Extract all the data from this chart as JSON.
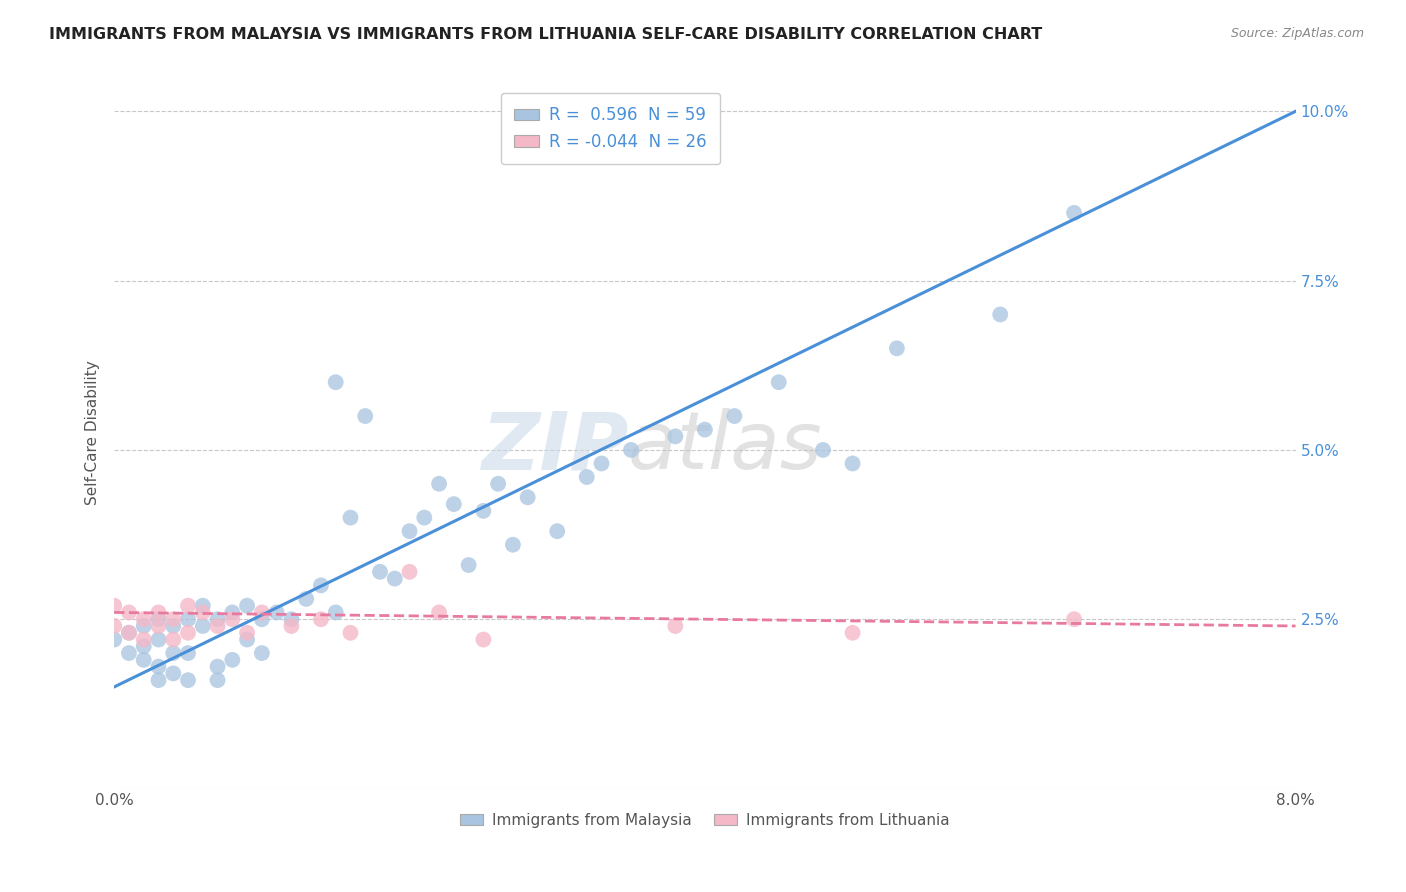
{
  "title": "IMMIGRANTS FROM MALAYSIA VS IMMIGRANTS FROM LITHUANIA SELF-CARE DISABILITY CORRELATION CHART",
  "source": "Source: ZipAtlas.com",
  "ylabel": "Self-Care Disability",
  "xlim": [
    0.0,
    0.08
  ],
  "ylim": [
    0.0,
    0.105
  ],
  "yticks": [
    0.0,
    0.025,
    0.05,
    0.075,
    0.1
  ],
  "yticklabels": [
    "",
    "2.5%",
    "5.0%",
    "7.5%",
    "10.0%"
  ],
  "malaysia_R": 0.596,
  "malaysia_N": 59,
  "lithuania_R": -0.044,
  "lithuania_N": 26,
  "malaysia_color": "#a8c4e0",
  "lithuania_color": "#f4b8c8",
  "malaysia_line_color": "#4a90d9",
  "lithuania_line_color": "#e87a9f",
  "background_color": "#ffffff",
  "grid_color": "#c8c8c8",
  "watermark_zip": "ZIP",
  "watermark_atlas": "atlas",
  "malaysia_x": [
    0.0,
    0.001,
    0.001,
    0.002,
    0.002,
    0.002,
    0.003,
    0.003,
    0.003,
    0.003,
    0.004,
    0.004,
    0.004,
    0.005,
    0.005,
    0.005,
    0.006,
    0.006,
    0.007,
    0.007,
    0.007,
    0.008,
    0.008,
    0.009,
    0.009,
    0.01,
    0.01,
    0.011,
    0.012,
    0.013,
    0.014,
    0.015,
    0.015,
    0.016,
    0.017,
    0.018,
    0.019,
    0.02,
    0.021,
    0.022,
    0.023,
    0.024,
    0.025,
    0.026,
    0.027,
    0.028,
    0.03,
    0.032,
    0.033,
    0.035,
    0.038,
    0.04,
    0.042,
    0.045,
    0.048,
    0.05,
    0.053,
    0.06,
    0.065
  ],
  "malaysia_y": [
    0.022,
    0.02,
    0.023,
    0.019,
    0.021,
    0.024,
    0.016,
    0.018,
    0.022,
    0.025,
    0.017,
    0.02,
    0.024,
    0.016,
    0.02,
    0.025,
    0.024,
    0.027,
    0.016,
    0.018,
    0.025,
    0.019,
    0.026,
    0.022,
    0.027,
    0.02,
    0.025,
    0.026,
    0.025,
    0.028,
    0.03,
    0.026,
    0.06,
    0.04,
    0.055,
    0.032,
    0.031,
    0.038,
    0.04,
    0.045,
    0.042,
    0.033,
    0.041,
    0.045,
    0.036,
    0.043,
    0.038,
    0.046,
    0.048,
    0.05,
    0.052,
    0.053,
    0.055,
    0.06,
    0.05,
    0.048,
    0.065,
    0.07,
    0.085
  ],
  "lithuania_x": [
    0.0,
    0.0,
    0.001,
    0.001,
    0.002,
    0.002,
    0.003,
    0.003,
    0.004,
    0.004,
    0.005,
    0.005,
    0.006,
    0.007,
    0.008,
    0.009,
    0.01,
    0.012,
    0.014,
    0.016,
    0.02,
    0.022,
    0.025,
    0.038,
    0.05,
    0.065
  ],
  "lithuania_y": [
    0.024,
    0.027,
    0.023,
    0.026,
    0.022,
    0.025,
    0.024,
    0.026,
    0.022,
    0.025,
    0.023,
    0.027,
    0.026,
    0.024,
    0.025,
    0.023,
    0.026,
    0.024,
    0.025,
    0.023,
    0.032,
    0.026,
    0.022,
    0.024,
    0.023,
    0.025
  ],
  "mal_line_x0": 0.0,
  "mal_line_y0": 0.015,
  "mal_line_x1": 0.08,
  "mal_line_y1": 0.1,
  "lit_line_x0": 0.0,
  "lit_line_y0": 0.026,
  "lit_line_x1": 0.08,
  "lit_line_y1": 0.024
}
